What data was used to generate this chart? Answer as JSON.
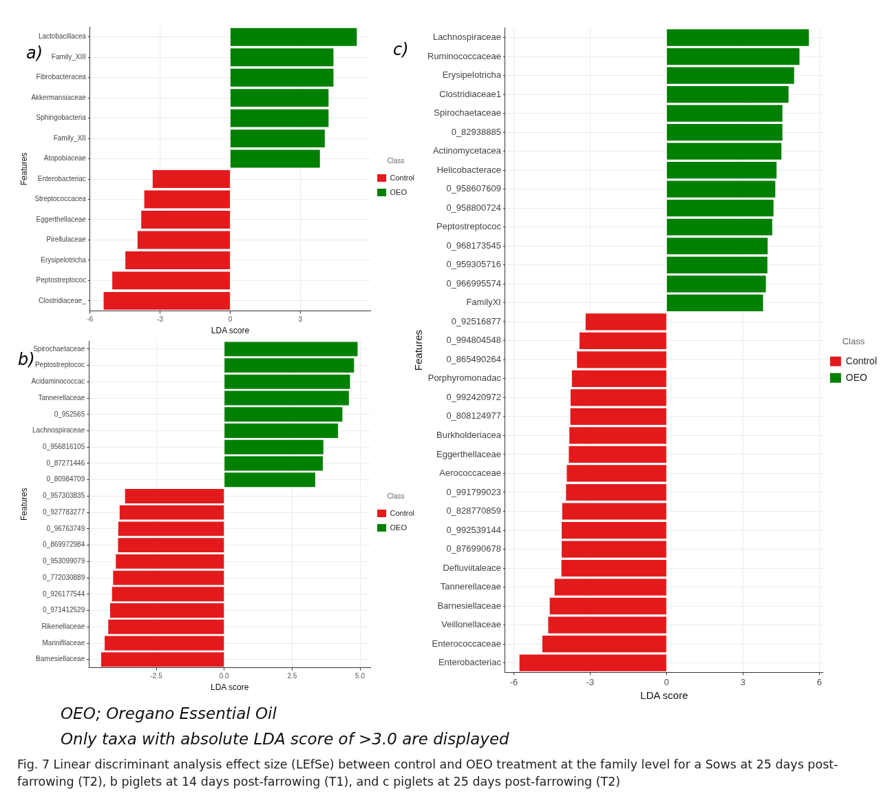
{
  "chart_data": [
    {
      "type": "bar",
      "orientation": "horizontal",
      "title": "a)",
      "xlabel": "LDA score",
      "ylabel": "Features",
      "legend_title": "Class",
      "legend": "right",
      "grid": true,
      "categories": [
        "Lactobacillacea",
        "Family_XIII",
        "Fibrobacteracea",
        "Akkermansiaceae",
        "Sphingobacteria",
        "Family_XII",
        "Atopobiaceae",
        "Enterobacteriac",
        "Streptococcacea",
        "Eggerthellaceae",
        "Pirellulaceae",
        "Erysipelotricha",
        "Peptostreptococ",
        "Clostridiaceae_"
      ],
      "xlim": [
        -6,
        6
      ],
      "xticks": [
        -6,
        -3,
        0,
        3
      ],
      "series": [
        {
          "name": "Control",
          "color": "#e31a1c",
          "values": [
            null,
            null,
            null,
            null,
            null,
            null,
            null,
            -3.32,
            -3.68,
            -3.81,
            -3.97,
            -4.49,
            -5.05,
            -5.42
          ]
        },
        {
          "name": "OEO",
          "color": "#008000",
          "values": [
            5.42,
            4.42,
            4.42,
            4.21,
            4.21,
            4.05,
            3.84,
            null,
            null,
            null,
            null,
            null,
            null,
            null
          ]
        }
      ]
    },
    {
      "type": "bar",
      "orientation": "horizontal",
      "title": "b)",
      "xlabel": "LDA score",
      "ylabel": "Features",
      "legend_title": "Class",
      "legend": "right",
      "grid": true,
      "categories": [
        "Spirochaetaceae",
        "Peptostreptococ",
        "Acidaminococcac",
        "Tannerellaceae",
        "0_952565",
        "Lachnospiraceae",
        "0_956816105",
        "0_87271446",
        "0_80984709",
        "0_957303835",
        "0_927783277",
        "0_96763749",
        "0_869972984",
        "0_953099079",
        "0_772030889",
        "0_926177544",
        "0_971412529",
        "Rikenellaceae",
        "Marinifilaceae",
        "Barnesiellaceae"
      ],
      "xlim": [
        -4.98,
        5.38
      ],
      "xticks": [
        -2.5,
        {
          "value": 0,
          "label": "0.0"
        },
        2.5,
        {
          "value": 5,
          "label": "5.0"
        }
      ],
      "annotations": [
        "OEO; Oregano Essential Oil",
        "Only taxa with absolute LDA score of >3.0 are displayed"
      ],
      "series": [
        {
          "name": "Control",
          "color": "#e31a1c",
          "values": [
            null,
            null,
            null,
            null,
            null,
            null,
            null,
            null,
            null,
            -3.65,
            -3.85,
            -3.9,
            -3.91,
            -3.99,
            -4.09,
            -4.13,
            -4.2,
            -4.27,
            -4.4,
            -4.53
          ]
        },
        {
          "name": "OEO",
          "color": "#008000",
          "values": [
            4.91,
            4.78,
            4.63,
            4.59,
            4.35,
            4.19,
            3.65,
            3.63,
            3.35,
            null,
            null,
            null,
            null,
            null,
            null,
            null,
            null,
            null,
            null,
            null
          ]
        }
      ]
    },
    {
      "type": "bar",
      "orientation": "horizontal",
      "title": "c)",
      "xlabel": "LDA score",
      "ylabel": "Features",
      "legend_title": "Class",
      "legend": "right",
      "grid": true,
      "categories": [
        "Lachnospiraceae",
        "Ruminococcaceae",
        "Erysipelotricha",
        "Clostridiaceae1",
        "Spirochaetaceae",
        "0_82938885",
        "Actinomycetacea",
        "Helicobacterace",
        "0_958607609",
        "0_958800724",
        "Peptostreptococ",
        "0_968173545",
        "0_959305716",
        "0_966995574",
        "FamilyXI",
        "0_92516877",
        "0_994804548",
        "0_865490264",
        "Porphyromonadac",
        "0_992420972",
        "0_808124977",
        "Burkholderiacea",
        "Eggerthellaceae",
        "Aerococcaceae",
        "0_991799023",
        "0_828770859",
        "0_992539144",
        "0_876990678",
        "Defluviitaleace",
        "Tannerellaceae",
        "Barnesiellaceae",
        "Veillonellaceae",
        "Enterococcaceae",
        "Enterobacteriac"
      ],
      "xlim": [
        -6.34,
        6.15
      ],
      "xticks": [
        -6,
        -3,
        0,
        3,
        6
      ],
      "annotations": [
        "Fig. 7 Linear discriminant analysis effect size (LEfSe) between control and OEO treatment at the family level for a Sows at 25 days post-farrowing (T2), b piglets at 14 days post-farrowing (T1), and c piglets at 25 days post-farrowing (T2)"
      ],
      "series": [
        {
          "name": "Control",
          "color": "#e31a1c",
          "values": [
            null,
            null,
            null,
            null,
            null,
            null,
            null,
            null,
            null,
            null,
            null,
            null,
            null,
            null,
            null,
            -3.18,
            -3.42,
            -3.52,
            -3.72,
            -3.77,
            -3.78,
            -3.82,
            -3.84,
            -3.92,
            -3.95,
            -4.1,
            -4.12,
            -4.12,
            -4.13,
            -4.4,
            -4.59,
            -4.65,
            -4.88,
            -5.78
          ]
        },
        {
          "name": "OEO",
          "color": "#008000",
          "values": [
            5.59,
            5.22,
            5.01,
            4.79,
            4.55,
            4.55,
            4.51,
            4.32,
            4.27,
            4.2,
            4.15,
            3.97,
            3.96,
            3.9,
            3.79,
            null,
            null,
            null,
            null,
            null,
            null,
            null,
            null,
            null,
            null,
            null,
            null,
            null,
            null,
            null,
            null,
            null,
            null,
            null
          ]
        }
      ]
    }
  ]
}
